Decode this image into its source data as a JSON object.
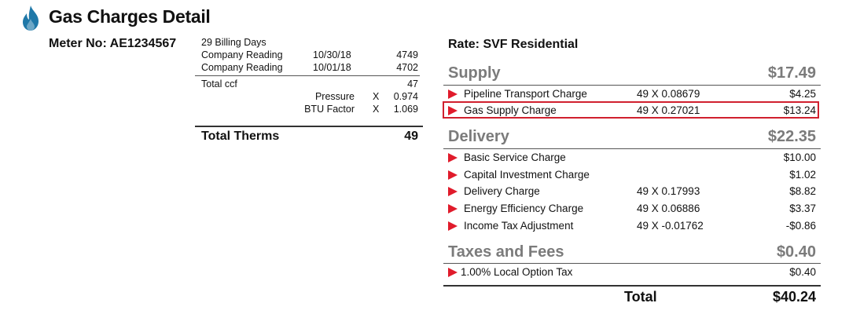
{
  "header": {
    "title": "Gas Charges Detail",
    "meter": "Meter No: AE1234567",
    "icon": "flame-icon",
    "icon_color": "#1f78a8"
  },
  "usage": {
    "billing_days": "29 Billing Days",
    "readings": [
      {
        "label": "Company Reading",
        "date": "10/30/18",
        "value": "4749"
      },
      {
        "label": "Company Reading",
        "date": "10/01/18",
        "value": "4702"
      }
    ],
    "total_ccf_label": "Total ccf",
    "total_ccf_value": "47",
    "pressure_label": "Pressure",
    "pressure_x": "X",
    "pressure_value": "0.974",
    "btu_label": "BTU Factor",
    "btu_x": "X",
    "btu_value": "1.069",
    "total_therms_label": "Total Therms",
    "total_therms_value": "49"
  },
  "rate": "Rate: SVF Residential",
  "sections": {
    "supply": {
      "title": "Supply",
      "total": "$17.49",
      "items": [
        {
          "desc": "Pipeline Transport Charge",
          "calc": "49  X 0.08679",
          "amount": "$4.25"
        },
        {
          "desc": "Gas Supply Charge",
          "calc": "49  X 0.27021",
          "amount": "$13.24"
        }
      ]
    },
    "delivery": {
      "title": "Delivery",
      "total": "$22.35",
      "items": [
        {
          "desc": "Basic Service Charge",
          "calc": "",
          "amount": "$10.00"
        },
        {
          "desc": "Capital Investment Charge",
          "calc": "",
          "amount": "$1.02"
        },
        {
          "desc": "Delivery Charge",
          "calc": "49  X 0.17993",
          "amount": "$8.82"
        },
        {
          "desc": "Energy Efficiency Charge",
          "calc": "49  X 0.06886",
          "amount": "$3.37"
        },
        {
          "desc": "Income Tax Adjustment",
          "calc": "49  X -0.01762",
          "amount": "-$0.86"
        }
      ]
    },
    "taxes": {
      "title": "Taxes and Fees",
      "total": "$0.40",
      "items": [
        {
          "desc": "1.00% Local Option Tax",
          "calc": "",
          "amount": "$0.40"
        }
      ]
    }
  },
  "total": {
    "label": "Total",
    "value": "$40.24"
  },
  "colors": {
    "arrow": "#e01b2b",
    "highlight": "#d0202e",
    "section_gray": "#7b7b7b"
  }
}
